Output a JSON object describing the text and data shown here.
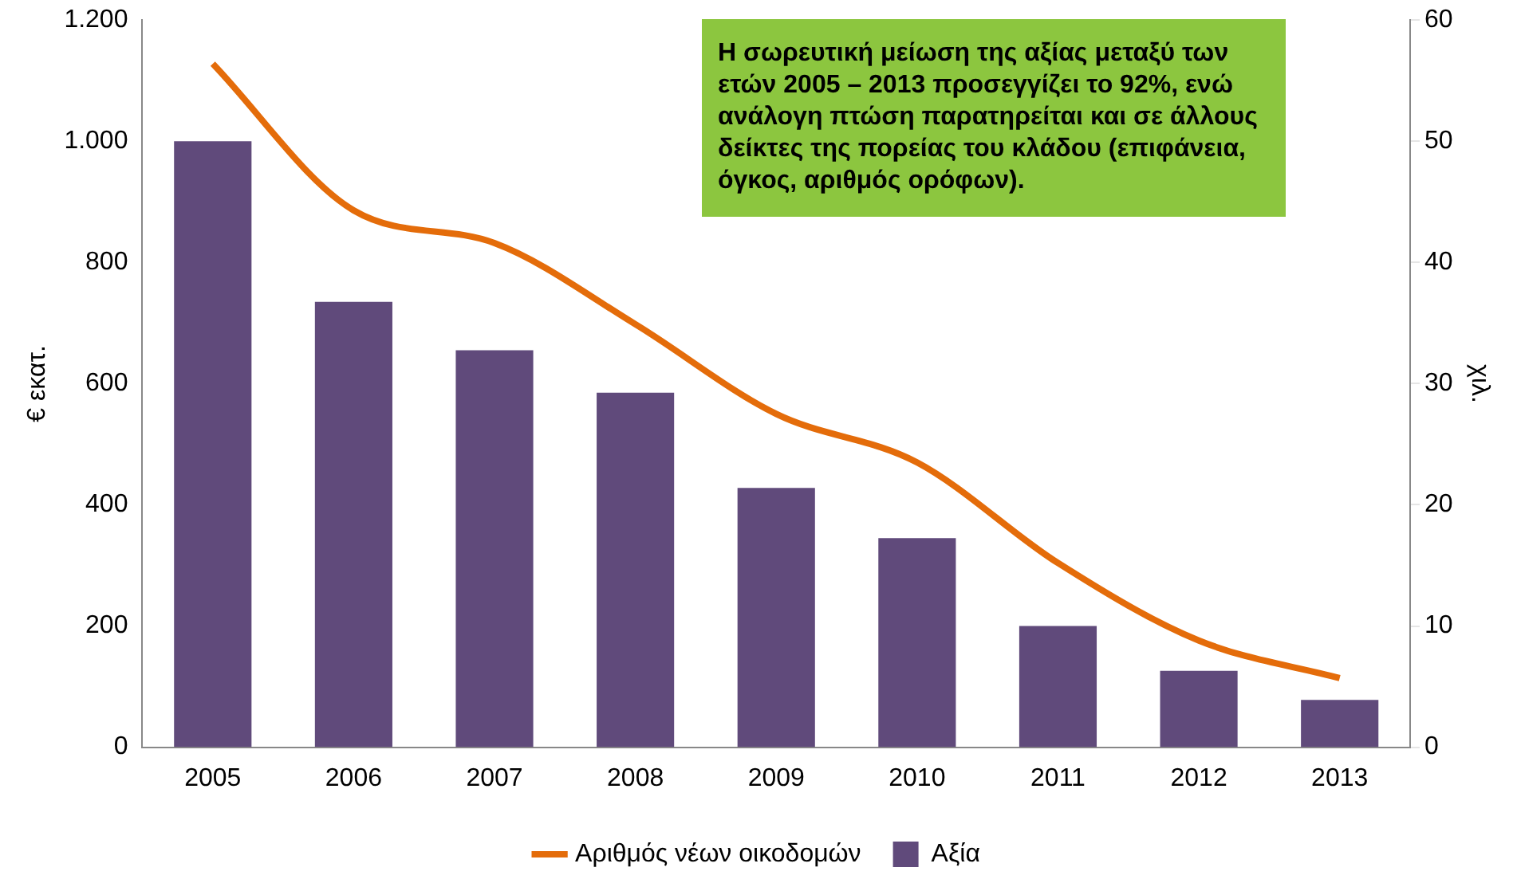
{
  "chart_data": {
    "type": "bar",
    "categories": [
      "2005",
      "2006",
      "2007",
      "2008",
      "2009",
      "2010",
      "2011",
      "2012",
      "2013"
    ],
    "series": [
      {
        "name": "Αξία",
        "color": "#604a7b",
        "values": [
          1000,
          735,
          655,
          585,
          428,
          345,
          200,
          126,
          78
        ]
      },
      {
        "name": "Αριθμός νέων οικοδομών",
        "type": "line",
        "axis": "y2",
        "color": "#e46c0a",
        "values": [
          56.4,
          44.3,
          41.6,
          34.9,
          27.5,
          23.5,
          15.2,
          8.8,
          5.7
        ]
      }
    ],
    "ylabel": "€ εκατ.",
    "y2label": "χιλ.",
    "ylim": [
      0,
      1200
    ],
    "yticks": [
      0,
      200,
      400,
      600,
      800,
      {
        "value": 1000,
        "label": "1.000"
      },
      {
        "value": 1200,
        "label": "1.200"
      }
    ],
    "y2lim": [
      0,
      60
    ],
    "y2ticks": [
      0,
      10,
      20,
      30,
      40,
      50,
      60
    ],
    "annotations": [
      "Η σωρευτική μείωση της αξίας μεταξύ των ετών 2005 – 2013 προσεγγίζει το 92%, ενώ ανάλογη πτώση παρατηρείται και σε άλλους δείκτες της πορείας του κλάδου (επιφάνεια, όγκος, αριθμός ορόφων)."
    ],
    "grid": false,
    "legend": "bottom",
    "marker": "none",
    "line_style": "solid"
  }
}
